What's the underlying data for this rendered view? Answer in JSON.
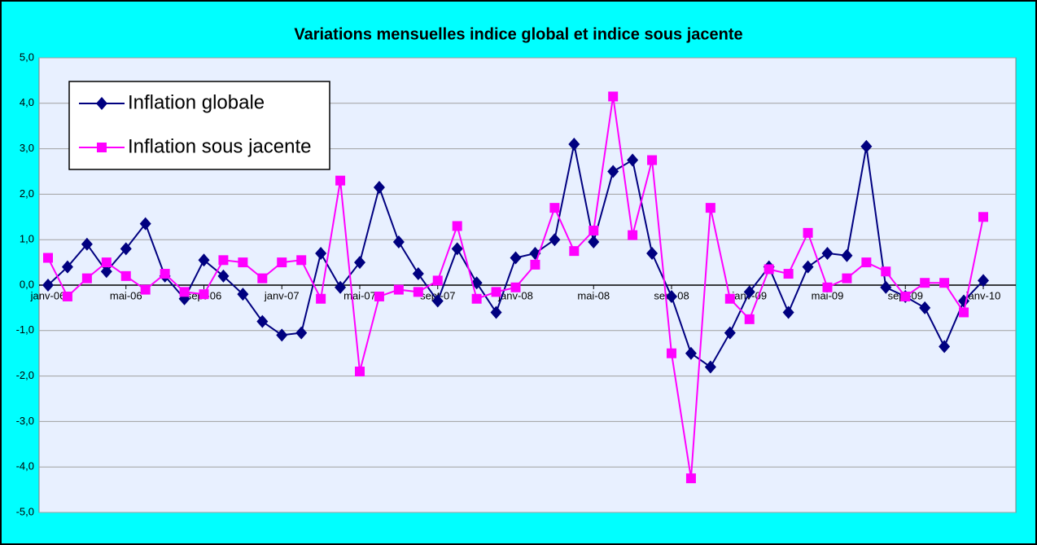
{
  "chart_data": {
    "type": "line",
    "title": "Variations mensuelles indice global et indice sous jacente",
    "categories": [
      "janv-06",
      null,
      null,
      null,
      "mai-06",
      null,
      null,
      null,
      "sept-06",
      null,
      null,
      null,
      "janv-07",
      null,
      null,
      null,
      "mai-07",
      null,
      null,
      null,
      "sept-07",
      null,
      null,
      null,
      "janv-08",
      null,
      null,
      null,
      "mai-08",
      null,
      null,
      null,
      "sept-08",
      null,
      null,
      null,
      "janv-09",
      null,
      null,
      null,
      "mai-09",
      null,
      null,
      null,
      "sept-09",
      null,
      null,
      null,
      "janv-10"
    ],
    "series": [
      {
        "name": "Inflation globale",
        "color": "#000080",
        "marker": "diamond",
        "values": [
          0.0,
          0.4,
          0.9,
          0.3,
          0.8,
          1.35,
          0.2,
          -0.3,
          0.55,
          0.2,
          -0.2,
          -0.8,
          -1.1,
          -1.05,
          0.7,
          -0.05,
          0.5,
          2.15,
          0.95,
          0.25,
          -0.35,
          0.8,
          0.05,
          -0.6,
          0.6,
          0.7,
          1.0,
          3.1,
          0.95,
          2.5,
          2.75,
          0.7,
          -0.25,
          -1.5,
          -1.8,
          -1.05,
          -0.15,
          0.4,
          -0.6,
          0.4,
          0.7,
          0.65,
          3.05,
          -0.05,
          -0.25,
          -0.5,
          -1.35,
          -0.35,
          0.1
        ]
      },
      {
        "name": "Inflation sous jacente",
        "color": "#ff00ff",
        "marker": "square",
        "values": [
          0.6,
          -0.25,
          0.15,
          0.5,
          0.2,
          -0.1,
          0.25,
          -0.15,
          -0.2,
          0.55,
          0.5,
          0.15,
          0.5,
          0.55,
          -0.3,
          2.3,
          -1.9,
          -0.25,
          -0.1,
          -0.15,
          0.1,
          1.3,
          -0.3,
          -0.15,
          -0.05,
          0.45,
          1.7,
          0.75,
          1.2,
          4.15,
          1.1,
          2.75,
          -1.5,
          -4.25,
          1.7,
          -0.3,
          -0.75,
          0.35,
          0.25,
          1.15,
          -0.05,
          0.15,
          0.5,
          0.3,
          -0.25,
          0.05,
          0.05,
          -0.6,
          1.5
        ]
      }
    ],
    "ylim": [
      -5,
      5
    ],
    "yticks": [
      {
        "value": -5,
        "label": "-5,0"
      },
      {
        "value": -4,
        "label": "-4,0"
      },
      {
        "value": -3,
        "label": "-3,0"
      },
      {
        "value": -2,
        "label": "-2,0"
      },
      {
        "value": -1,
        "label": "-1,0"
      },
      {
        "value": 0,
        "label": "0,0"
      },
      {
        "value": 1,
        "label": "1,0"
      },
      {
        "value": 2,
        "label": "2,0"
      },
      {
        "value": 3,
        "label": "3,0"
      },
      {
        "value": 4,
        "label": "4,0"
      },
      {
        "value": 5,
        "label": "5,0"
      }
    ],
    "grid": true,
    "legend": "top-left"
  }
}
